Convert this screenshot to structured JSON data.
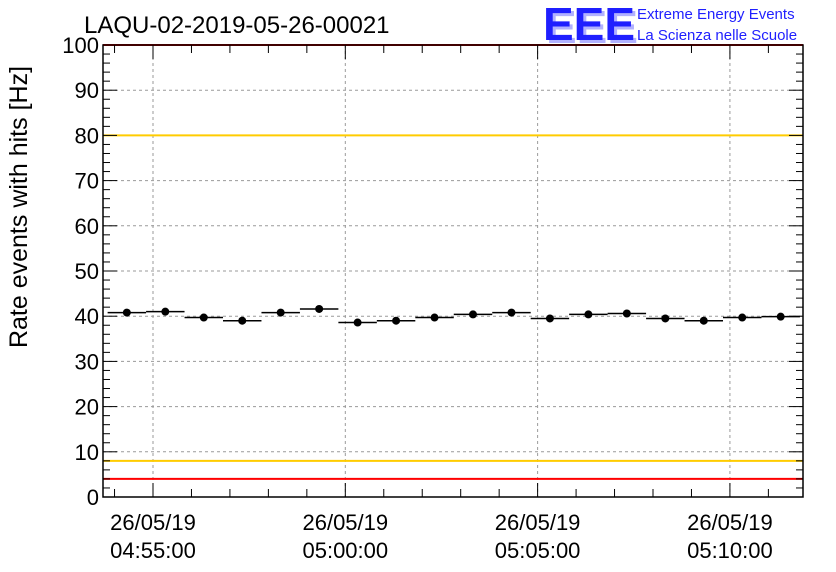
{
  "chart_data": {
    "type": "scatter",
    "title": "LAQU-02-2019-05-26-00021",
    "ylabel": "Rate events with hits [Hz]",
    "xlabel": "",
    "ylim": [
      0,
      100
    ],
    "y_ticks": [
      0,
      10,
      20,
      30,
      40,
      50,
      60,
      70,
      80,
      90,
      100
    ],
    "x_range_minutes": [
      -1.3,
      16.9
    ],
    "x_ticks": [
      {
        "minute": 0,
        "date": "26/05/19",
        "time": "04:55:00"
      },
      {
        "minute": 5,
        "date": "26/05/19",
        "time": "05:00:00"
      },
      {
        "minute": 10,
        "date": "26/05/19",
        "time": "05:05:00"
      },
      {
        "minute": 15,
        "date": "26/05/19",
        "time": "05:10:00"
      }
    ],
    "bin_width_minutes": 1,
    "series": [
      {
        "name": "rate",
        "x_minutes": [
          -0.68,
          0.32,
          1.32,
          2.32,
          3.32,
          4.32,
          5.32,
          6.32,
          7.32,
          8.32,
          9.32,
          10.32,
          11.32,
          12.32,
          13.32,
          14.32,
          15.32,
          16.32
        ],
        "values": [
          40.8,
          41.0,
          39.7,
          39.0,
          40.8,
          41.6,
          38.6,
          39.0,
          39.7,
          40.4,
          40.8,
          39.5,
          40.4,
          40.6,
          39.5,
          39.0,
          39.7,
          39.9
        ]
      }
    ],
    "reference_lines": [
      {
        "name": "upper-limit",
        "value": 100,
        "color": "#ff0000"
      },
      {
        "name": "upper-warning",
        "value": 80,
        "color": "#ffcc00"
      },
      {
        "name": "lower-warning",
        "value": 8,
        "color": "#ffcc00"
      },
      {
        "name": "lower-limit",
        "value": 4,
        "color": "#ff0000"
      }
    ],
    "grid": true
  },
  "logo": {
    "mark": "EEE",
    "line1": "Extreme Energy Events",
    "line2": "La Scienza nelle Scuole",
    "color": "#1f1fff"
  }
}
